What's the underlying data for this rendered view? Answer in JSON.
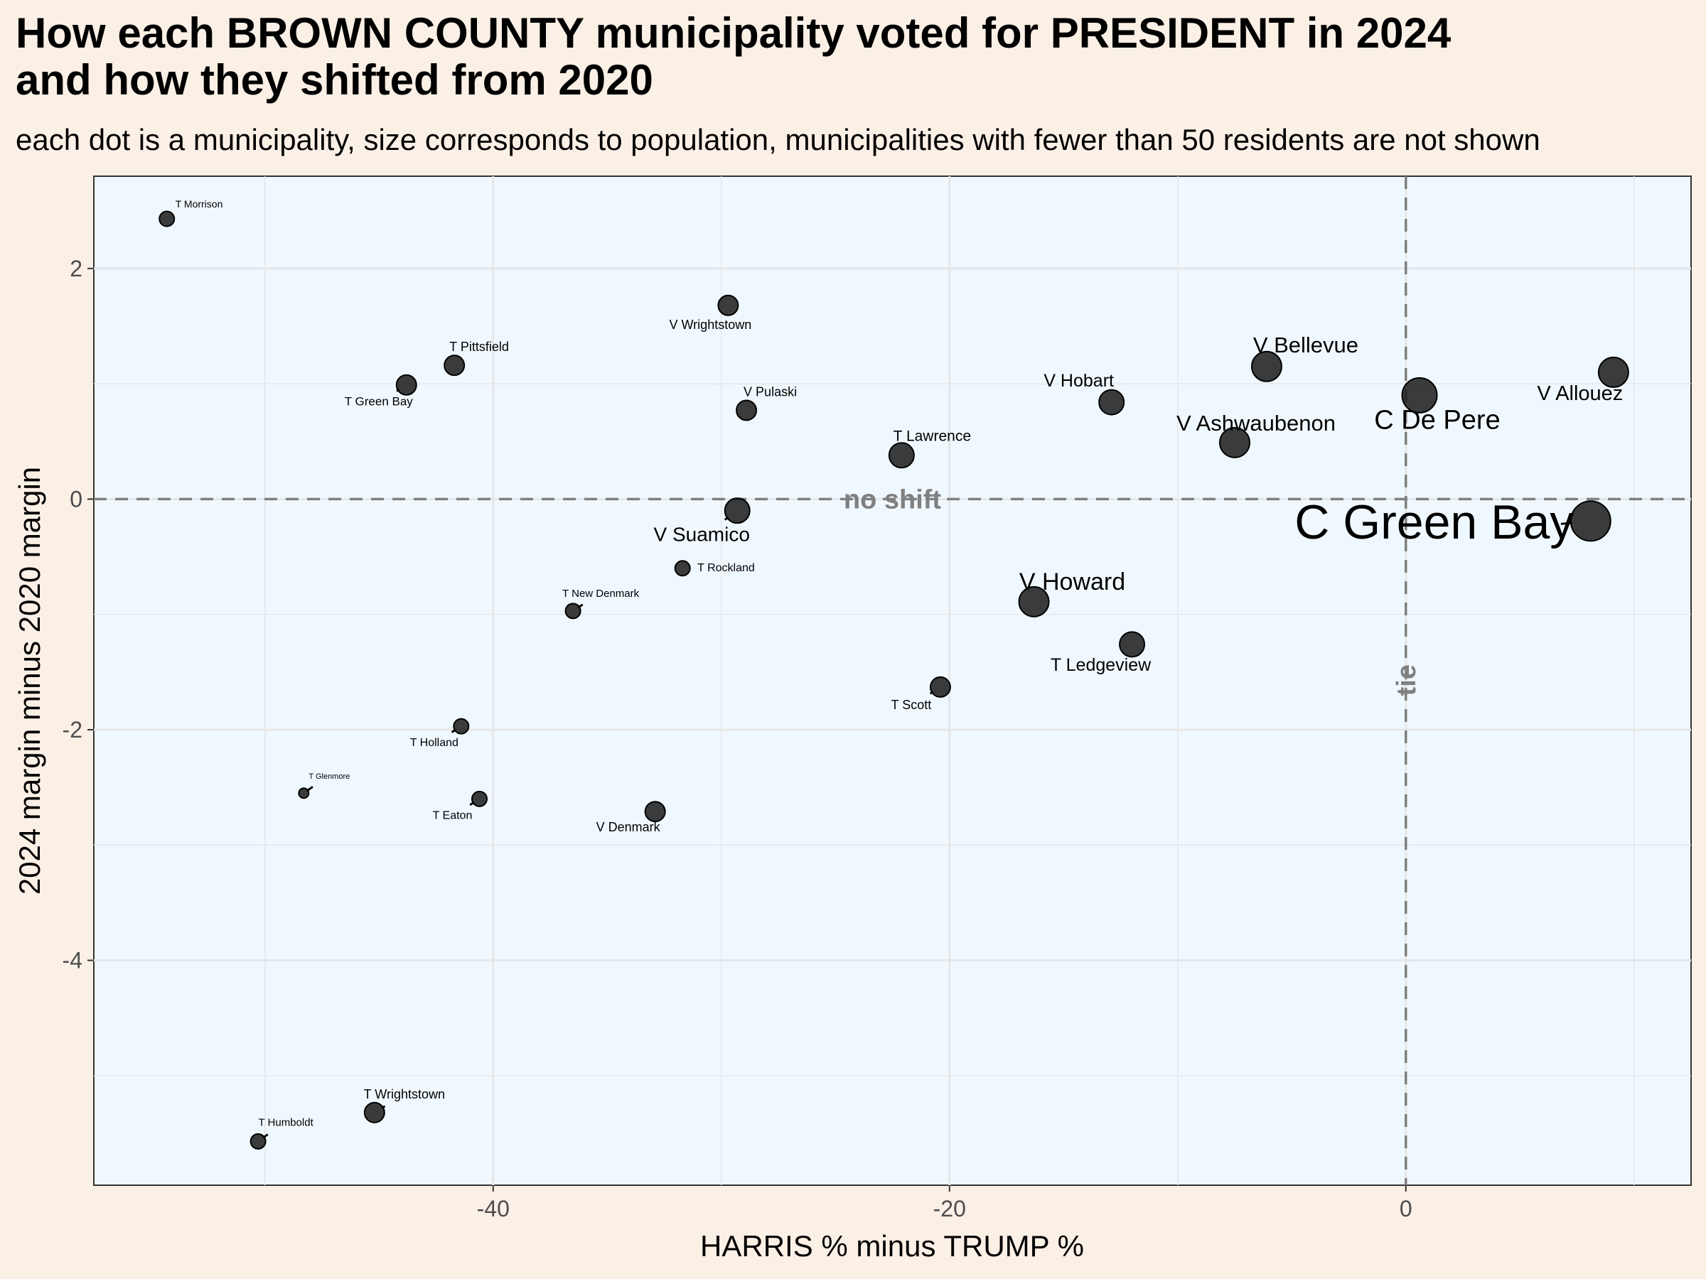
{
  "chart_data": {
    "type": "scatter",
    "title_line1": "How each BROWN COUNTY municipality voted for PRESIDENT in 2024",
    "title_line2": "and how they shifted from 2020",
    "subtitle": "each dot is a municipality, size corresponds to population, municipalities with fewer than 50 residents are not shown",
    "xlabel": "HARRIS % minus TRUMP %",
    "ylabel": "2024 margin minus 2020 margin",
    "xlim": [
      -57.5,
      12.5
    ],
    "ylim": [
      -5.95,
      2.8
    ],
    "x_ticks": [
      -40,
      -20,
      0
    ],
    "y_ticks": [
      2,
      0,
      -2,
      -4
    ],
    "grid": true,
    "reference_lines": [
      {
        "axis": "y",
        "value": 0,
        "label": "no shift"
      },
      {
        "axis": "x",
        "value": 0,
        "label": "tie"
      }
    ],
    "colors": {
      "panel": "#f0f8ff",
      "background": "#fbf0e6",
      "point": "#1a1a1a",
      "reference": "#808080",
      "grid": "#e6e6e6"
    },
    "points": [
      {
        "name": "T Morrison",
        "x": -54.3,
        "y": 2.43,
        "size": 1
      },
      {
        "name": "V Wrightstown",
        "x": -29.7,
        "y": 1.68,
        "size": 2
      },
      {
        "name": "T Pittsfield",
        "x": -41.7,
        "y": 1.16,
        "size": 2
      },
      {
        "name": "T Green Bay",
        "x": -43.8,
        "y": 0.99,
        "size": 2
      },
      {
        "name": "V Pulaski",
        "x": -28.9,
        "y": 0.77,
        "size": 2
      },
      {
        "name": "T Lawrence",
        "x": -22.1,
        "y": 0.38,
        "size": 3
      },
      {
        "name": "V Hobart",
        "x": -12.9,
        "y": 0.84,
        "size": 3
      },
      {
        "name": "V Bellevue",
        "x": -6.1,
        "y": 1.15,
        "size": 4
      },
      {
        "name": "V Ashwaubenon",
        "x": -7.5,
        "y": 0.49,
        "size": 4
      },
      {
        "name": "C De Pere",
        "x": 0.6,
        "y": 0.9,
        "size": 5
      },
      {
        "name": "V Allouez",
        "x": 9.1,
        "y": 1.1,
        "size": 4
      },
      {
        "name": "V Suamico",
        "x": -29.3,
        "y": -0.1,
        "size": 3
      },
      {
        "name": "C Green Bay",
        "x": 8.1,
        "y": -0.19,
        "size": 6
      },
      {
        "name": "T Rockland",
        "x": -31.7,
        "y": -0.6,
        "size": 1
      },
      {
        "name": "T New Denmark",
        "x": -36.5,
        "y": -0.97,
        "size": 1
      },
      {
        "name": "V Howard",
        "x": -16.3,
        "y": -0.89,
        "size": 4
      },
      {
        "name": "T Ledgeview",
        "x": -12.0,
        "y": -1.26,
        "size": 3
      },
      {
        "name": "T Scott",
        "x": -20.4,
        "y": -1.63,
        "size": 2
      },
      {
        "name": "T Holland",
        "x": -41.4,
        "y": -1.97,
        "size": 1
      },
      {
        "name": "T Glenmore",
        "x": -48.3,
        "y": -2.55,
        "size": 0
      },
      {
        "name": "T Eaton",
        "x": -40.6,
        "y": -2.6,
        "size": 1
      },
      {
        "name": "V Denmark",
        "x": -32.9,
        "y": -2.71,
        "size": 2
      },
      {
        "name": "T Wrightstown",
        "x": -45.2,
        "y": -5.32,
        "size": 2
      },
      {
        "name": "T Humboldt",
        "x": -50.3,
        "y": -5.57,
        "size": 1
      }
    ]
  }
}
